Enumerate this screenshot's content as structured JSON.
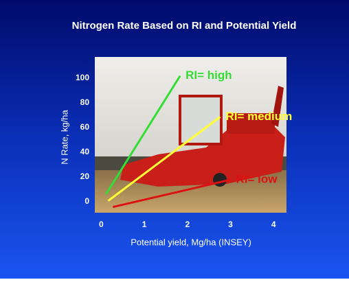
{
  "chart_data": {
    "type": "line",
    "title": "Nitrogen Rate Based on RI and Potential Yield",
    "x_label": "Potential yield, Mg/ha (INSEY)",
    "y_label": "N Rate, kg/ha",
    "xlim": [
      -0.15,
      4.3
    ],
    "ylim": [
      -9,
      117
    ],
    "xticks": [
      0,
      1,
      2,
      3,
      4
    ],
    "yticks": [
      0,
      20,
      40,
      60,
      80,
      100
    ],
    "series": [
      {
        "name": "RI= high",
        "color": "#33dd33",
        "x": [
          0.11,
          1.83
        ],
        "values": [
          6,
          101.7
        ]
      },
      {
        "name": "RI= medium",
        "color": "#ffff33",
        "x": [
          0.16,
          2.76
        ],
        "values": [
          0.6,
          68.5
        ]
      },
      {
        "name": "RI= low",
        "color": "#dd1111",
        "x": [
          0.27,
          3.0
        ],
        "values": [
          -4.4,
          17.7
        ]
      }
    ]
  }
}
